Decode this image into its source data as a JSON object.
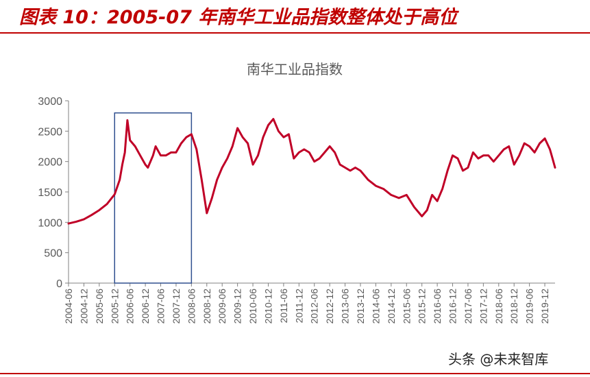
{
  "figure_title": "图表 10：2005-07 年南华工业品指数整体处于高位",
  "watermark": "头条 @未来智库",
  "colors": {
    "accent": "#c00000",
    "series": "#c00027",
    "highlight_box": "#2f4f8f",
    "axis": "#808080",
    "text": "#595959"
  },
  "chart_data": {
    "type": "line",
    "title": "南华工业品指数",
    "xlabel": "",
    "ylabel": "",
    "ylim": [
      0,
      3000
    ],
    "yticks": [
      "0",
      "500",
      "1000",
      "1500",
      "2000",
      "2500",
      "3000"
    ],
    "xlim": [
      "2004-06",
      "2020-04"
    ],
    "xticks": [
      "2004-06",
      "2004-12",
      "2005-06",
      "2005-12",
      "2006-06",
      "2006-12",
      "2007-06",
      "2007-12",
      "2008-06",
      "2008-12",
      "2009-06",
      "2009-12",
      "2010-06",
      "2010-12",
      "2011-06",
      "2011-12",
      "2012-06",
      "2012-12",
      "2013-06",
      "2013-12",
      "2014-06",
      "2014-12",
      "2015-06",
      "2015-12",
      "2016-06",
      "2016-12",
      "2017-06",
      "2017-12",
      "2018-06",
      "2018-12",
      "2019-06",
      "2019-12"
    ],
    "grid": false,
    "legend": "none",
    "highlight_range": [
      "2005-12",
      "2008-06"
    ],
    "highlight_ylim": [
      0,
      2800
    ],
    "series": [
      {
        "name": "南华工业品指数",
        "points": [
          [
            "2004-06",
            980
          ],
          [
            "2004-09",
            1010
          ],
          [
            "2004-12",
            1050
          ],
          [
            "2005-03",
            1120
          ],
          [
            "2005-06",
            1200
          ],
          [
            "2005-09",
            1300
          ],
          [
            "2005-12",
            1460
          ],
          [
            "2006-02",
            1700
          ],
          [
            "2006-03",
            1950
          ],
          [
            "2006-04",
            2150
          ],
          [
            "2006-05",
            2680
          ],
          [
            "2006-06",
            2350
          ],
          [
            "2006-08",
            2250
          ],
          [
            "2006-10",
            2100
          ],
          [
            "2006-12",
            1950
          ],
          [
            "2007-01",
            1900
          ],
          [
            "2007-03",
            2100
          ],
          [
            "2007-04",
            2250
          ],
          [
            "2007-06",
            2100
          ],
          [
            "2007-08",
            2100
          ],
          [
            "2007-10",
            2150
          ],
          [
            "2007-12",
            2150
          ],
          [
            "2008-02",
            2300
          ],
          [
            "2008-04",
            2400
          ],
          [
            "2008-06",
            2450
          ],
          [
            "2008-08",
            2200
          ],
          [
            "2008-10",
            1700
          ],
          [
            "2008-12",
            1150
          ],
          [
            "2009-02",
            1400
          ],
          [
            "2009-04",
            1700
          ],
          [
            "2009-06",
            1900
          ],
          [
            "2009-08",
            2050
          ],
          [
            "2009-10",
            2250
          ],
          [
            "2009-12",
            2550
          ],
          [
            "2010-02",
            2400
          ],
          [
            "2010-04",
            2300
          ],
          [
            "2010-06",
            1950
          ],
          [
            "2010-08",
            2100
          ],
          [
            "2010-10",
            2400
          ],
          [
            "2010-12",
            2600
          ],
          [
            "2011-02",
            2700
          ],
          [
            "2011-04",
            2500
          ],
          [
            "2011-06",
            2400
          ],
          [
            "2011-08",
            2450
          ],
          [
            "2011-10",
            2050
          ],
          [
            "2011-12",
            2150
          ],
          [
            "2012-02",
            2200
          ],
          [
            "2012-04",
            2150
          ],
          [
            "2012-06",
            2000
          ],
          [
            "2012-08",
            2050
          ],
          [
            "2012-10",
            2150
          ],
          [
            "2012-12",
            2250
          ],
          [
            "2013-02",
            2150
          ],
          [
            "2013-04",
            1950
          ],
          [
            "2013-06",
            1900
          ],
          [
            "2013-08",
            1850
          ],
          [
            "2013-10",
            1900
          ],
          [
            "2013-12",
            1850
          ],
          [
            "2014-03",
            1700
          ],
          [
            "2014-06",
            1600
          ],
          [
            "2014-09",
            1550
          ],
          [
            "2014-12",
            1450
          ],
          [
            "2015-03",
            1400
          ],
          [
            "2015-06",
            1450
          ],
          [
            "2015-09",
            1250
          ],
          [
            "2015-12",
            1100
          ],
          [
            "2016-02",
            1200
          ],
          [
            "2016-04",
            1450
          ],
          [
            "2016-06",
            1350
          ],
          [
            "2016-08",
            1550
          ],
          [
            "2016-10",
            1850
          ],
          [
            "2016-12",
            2100
          ],
          [
            "2017-02",
            2050
          ],
          [
            "2017-04",
            1850
          ],
          [
            "2017-06",
            1900
          ],
          [
            "2017-08",
            2150
          ],
          [
            "2017-10",
            2050
          ],
          [
            "2017-12",
            2100
          ],
          [
            "2018-02",
            2100
          ],
          [
            "2018-04",
            2000
          ],
          [
            "2018-06",
            2100
          ],
          [
            "2018-08",
            2200
          ],
          [
            "2018-10",
            2250
          ],
          [
            "2018-12",
            1950
          ],
          [
            "2019-02",
            2100
          ],
          [
            "2019-04",
            2300
          ],
          [
            "2019-06",
            2250
          ],
          [
            "2019-08",
            2150
          ],
          [
            "2019-10",
            2300
          ],
          [
            "2019-12",
            2380
          ],
          [
            "2020-02",
            2200
          ],
          [
            "2020-03",
            2050
          ],
          [
            "2020-04",
            1900
          ]
        ]
      }
    ]
  }
}
